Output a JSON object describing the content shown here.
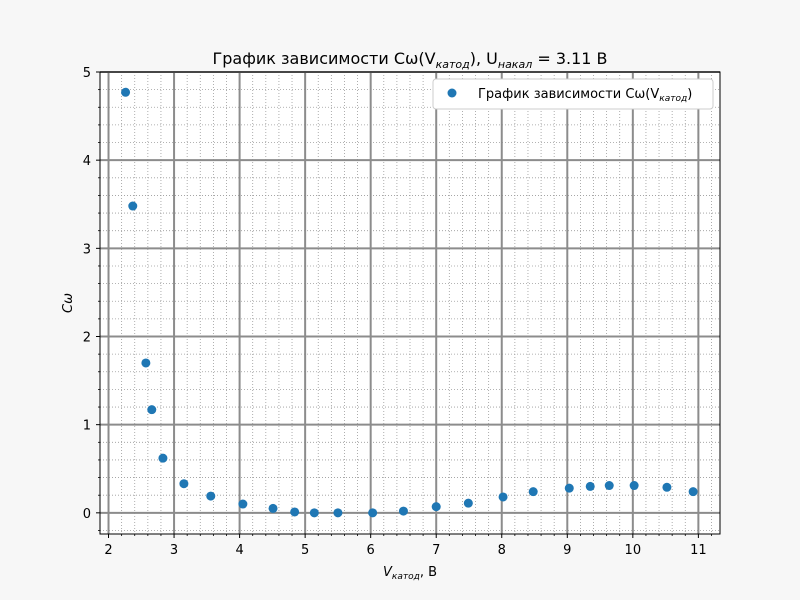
{
  "chart_data": {
    "type": "scatter",
    "title": {
      "main": "График зависимости Cω(V",
      "sub1": "катод",
      "mid": "), U",
      "sub2": "накал",
      "tail": " = 3.11 В"
    },
    "xlabel": {
      "main": "V",
      "sub": "катод",
      "tail": ", В"
    },
    "ylabel": "Cω",
    "legend": {
      "main": "График зависимости Cω(V",
      "sub": "катод",
      "tail": ")",
      "placement": "top-right"
    },
    "xlim": [
      1.87,
      11.33
    ],
    "ylim": [
      -0.24,
      5.0
    ],
    "xticks": [
      2,
      3,
      4,
      5,
      6,
      7,
      8,
      9,
      10,
      11
    ],
    "yticks": [
      0,
      1,
      2,
      3,
      4,
      5
    ],
    "grid": {
      "major": true,
      "minor": true
    },
    "colors": {
      "series": "#1f77b4",
      "grid": "#8c8c8c",
      "background": "#ffffff"
    },
    "series": [
      {
        "name": "График зависимости Cω(Vкатод)",
        "points": [
          [
            2.26,
            4.77
          ],
          [
            2.37,
            3.48
          ],
          [
            2.57,
            1.7
          ],
          [
            2.66,
            1.17
          ],
          [
            2.83,
            0.62
          ],
          [
            3.15,
            0.33
          ],
          [
            3.56,
            0.19
          ],
          [
            4.05,
            0.1
          ],
          [
            4.51,
            0.05
          ],
          [
            4.84,
            0.01
          ],
          [
            5.14,
            0.0
          ],
          [
            5.5,
            0.0
          ],
          [
            6.03,
            0.0
          ],
          [
            6.5,
            0.02
          ],
          [
            7.0,
            0.07
          ],
          [
            7.49,
            0.11
          ],
          [
            8.02,
            0.18
          ],
          [
            8.48,
            0.24
          ],
          [
            9.03,
            0.28
          ],
          [
            9.35,
            0.3
          ],
          [
            9.64,
            0.31
          ],
          [
            10.02,
            0.31
          ],
          [
            10.52,
            0.29
          ],
          [
            10.92,
            0.24
          ]
        ]
      }
    ]
  }
}
